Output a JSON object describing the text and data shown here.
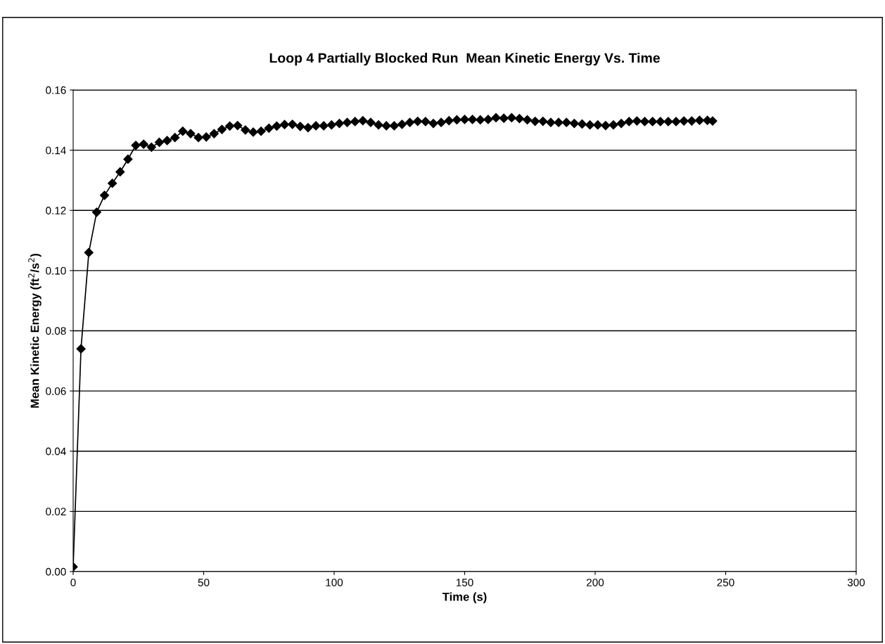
{
  "chart_data": {
    "type": "line",
    "title": "Loop 4 Partially Blocked Run  Mean Kinetic Energy Vs. Time",
    "xlabel": "Time (s)",
    "ylabel": "Mean Kinetic Energy (ft$^{2}$/s$^{2}$)",
    "x": [
      0,
      3,
      6,
      9,
      12,
      15,
      18,
      21,
      24,
      27,
      30,
      33,
      36,
      39,
      42,
      45,
      48,
      51,
      54,
      57,
      60,
      63,
      66,
      69,
      72,
      75,
      78,
      81,
      84,
      87,
      90,
      93,
      96,
      99,
      102,
      105,
      108,
      111,
      114,
      117,
      120,
      123,
      126,
      129,
      132,
      135,
      138,
      141,
      144,
      147,
      150,
      153,
      156,
      159,
      162,
      165,
      168,
      171,
      174,
      177,
      180,
      183,
      186,
      189,
      192,
      195,
      198,
      201,
      204,
      207,
      210,
      213,
      216,
      219,
      222,
      225,
      228,
      231,
      234,
      237,
      240,
      243,
      245
    ],
    "series": [
      {
        "color": "#000000",
        "values": [
          0.0016,
          0.074,
          0.106,
          0.1194,
          0.125,
          0.129,
          0.1328,
          0.137,
          0.1416,
          0.142,
          0.141,
          0.1426,
          0.1432,
          0.1442,
          0.1463,
          0.1455,
          0.1442,
          0.1444,
          0.1455,
          0.1469,
          0.148,
          0.1482,
          0.1467,
          0.146,
          0.1463,
          0.1473,
          0.148,
          0.1485,
          0.1486,
          0.1479,
          0.1475,
          0.1481,
          0.1481,
          0.1484,
          0.1489,
          0.1492,
          0.1495,
          0.1498,
          0.1492,
          0.1484,
          0.1481,
          0.1481,
          0.1486,
          0.1492,
          0.1496,
          0.1495,
          0.1489,
          0.1492,
          0.1498,
          0.1501,
          0.1502,
          0.1502,
          0.1501,
          0.1502,
          0.1508,
          0.1506,
          0.1508,
          0.1505,
          0.1501,
          0.1496,
          0.1496,
          0.1492,
          0.1492,
          0.1492,
          0.1489,
          0.1487,
          0.1484,
          0.1484,
          0.1482,
          0.1484,
          0.1489,
          0.1495,
          0.1497,
          0.1495,
          0.1495,
          0.1495,
          0.1495,
          0.1495,
          0.1497,
          0.1497,
          0.1499,
          0.1499,
          0.1497
        ]
      }
    ],
    "xlim": [
      0,
      300
    ],
    "xticks": [
      0,
      50,
      100,
      150,
      200,
      250,
      300
    ],
    "ylim": [
      0,
      0.16
    ],
    "yticks": [
      {
        "value": 0,
        "label": "0.00"
      },
      {
        "value": 0.02,
        "label": "0.02"
      },
      {
        "value": 0.04,
        "label": "0.04"
      },
      {
        "value": 0.06,
        "label": "0.06"
      },
      {
        "value": 0.08,
        "label": "0.08"
      },
      {
        "value": 0.1,
        "label": "0.10"
      },
      {
        "value": 0.12,
        "label": "0.12"
      },
      {
        "value": 0.14,
        "label": "0.14"
      },
      {
        "value": 0.16,
        "label": "0.16"
      }
    ],
    "grid": "y",
    "marker": "diamond",
    "line_style": "solid"
  }
}
